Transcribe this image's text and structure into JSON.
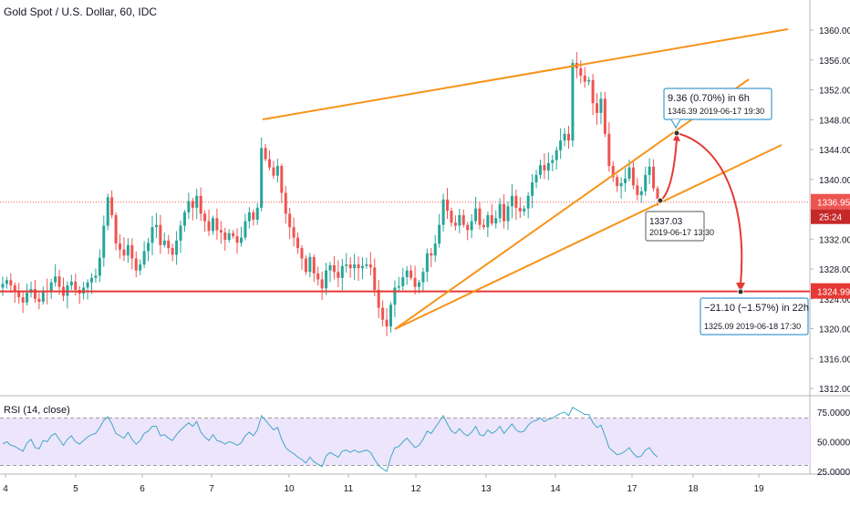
{
  "chart": {
    "title": "Gold Spot / U.S. Dollar, 60, IDC",
    "rsi_label": "RSI (14, close)"
  },
  "chart_data": {
    "type": "candlestick",
    "title": "Gold Spot / U.S. Dollar, 60, IDC",
    "price_axis": {
      "ylim": [
        1311,
        1362
      ],
      "ticks": [
        "1312.00",
        "1316.00",
        "1320.00",
        "1324.00",
        "1328.00",
        "1332.00",
        "1336.00",
        "1340.00",
        "1344.00",
        "1348.00",
        "1352.00",
        "1356.00",
        "1360.00"
      ]
    },
    "time_axis": {
      "ticks": [
        "4",
        "5",
        "6",
        "7",
        "10",
        "11",
        "12",
        "13",
        "14",
        "17",
        "18",
        "19"
      ]
    },
    "current_price": {
      "value": "1336.95",
      "countdown": "25:24"
    },
    "target_line": {
      "value": "1324.99"
    },
    "series": [
      {
        "name": "price",
        "ohlc_hourly_closes": [
          1326,
          1326.5,
          1325.8,
          1325,
          1324.2,
          1323.5,
          1324.8,
          1325.3,
          1324,
          1323.6,
          1325.1,
          1324.9,
          1326.2,
          1327,
          1325.6,
          1324.4,
          1325.8,
          1326.3,
          1325.2,
          1324.7,
          1325.5,
          1326.2,
          1326.8,
          1327.1,
          1329.5,
          1333.8,
          1337.6,
          1335.2,
          1331.4,
          1330.6,
          1329.8,
          1331.2,
          1329.4,
          1327.8,
          1328.6,
          1330.4,
          1331.5,
          1333.6,
          1333.9,
          1331.2,
          1331.8,
          1330.8,
          1329.9,
          1331.8,
          1333.8,
          1335.6,
          1337.1,
          1336.2,
          1337.8,
          1335.4,
          1334.4,
          1333.1,
          1334.8,
          1333.2,
          1332.9,
          1331.9,
          1332.8,
          1332.4,
          1331.5,
          1332.2,
          1334.4,
          1335.6,
          1334.6,
          1336.2,
          1344.2,
          1342.7,
          1341.6,
          1340.5,
          1341.8,
          1338.2,
          1335.4,
          1333.6,
          1332.2,
          1330.8,
          1329.4,
          1327.6,
          1329.6,
          1327.4,
          1326.6,
          1325.4,
          1327.8,
          1328.5,
          1327.6,
          1326.8,
          1328.4,
          1328.6,
          1328.1,
          1328.6,
          1328.1,
          1328.4,
          1328.6,
          1328.2,
          1325.2,
          1322.8,
          1321.2,
          1320.3,
          1323.2,
          1325.5,
          1325.7,
          1326.9,
          1327.8,
          1326.8,
          1325.6,
          1326.2,
          1327.6,
          1330.1,
          1329.8,
          1331.4,
          1333.9,
          1337.3,
          1335.8,
          1334.2,
          1333.8,
          1335.2,
          1333.9,
          1333.2,
          1334.4,
          1336.1,
          1333.9,
          1333.6,
          1335.2,
          1334.1,
          1334.8,
          1336.7,
          1334.4,
          1336.4,
          1337.8,
          1336.2,
          1335.7,
          1336.1,
          1337.8,
          1339.6,
          1340.6,
          1341.9,
          1341.2,
          1342.2,
          1342.6,
          1343.9,
          1345.2,
          1346.1,
          1345.2,
          1355.6,
          1354.9,
          1353.9,
          1353.1,
          1353.3,
          1350.2,
          1348.9,
          1350.8,
          1346.1,
          1341.8,
          1340.3,
          1339.1,
          1339.5,
          1340.1,
          1341.6,
          1339.2,
          1337.9,
          1338.4,
          1340.6,
          1341.7,
          1338.8,
          1337.4
        ]
      }
    ],
    "rsi": {
      "ylim": [
        22,
        80
      ],
      "ticks": [
        "75.0000",
        "50.0000",
        "25.0000"
      ],
      "band": [
        30,
        70
      ],
      "values": [
        48,
        50,
        47,
        46,
        44,
        42,
        49,
        52,
        45,
        44,
        51,
        50,
        55,
        57,
        52,
        47,
        52,
        55,
        50,
        48,
        51,
        54,
        56,
        57,
        62,
        68,
        71,
        65,
        57,
        55,
        53,
        58,
        52,
        48,
        51,
        57,
        59,
        63,
        63,
        55,
        56,
        53,
        51,
        56,
        60,
        63,
        66,
        63,
        67,
        58,
        54,
        51,
        56,
        51,
        50,
        48,
        50,
        49,
        47,
        49,
        55,
        58,
        55,
        60,
        72,
        68,
        64,
        60,
        62,
        52,
        45,
        42,
        40,
        37,
        35,
        32,
        37,
        33,
        31,
        29,
        38,
        41,
        39,
        37,
        42,
        43,
        41,
        43,
        41,
        42,
        43,
        41,
        35,
        30,
        27,
        25,
        37,
        45,
        46,
        50,
        53,
        49,
        45,
        47,
        52,
        59,
        57,
        62,
        67,
        72,
        65,
        59,
        57,
        61,
        57,
        55,
        58,
        63,
        56,
        55,
        60,
        57,
        59,
        63,
        57,
        61,
        65,
        60,
        58,
        59,
        64,
        67,
        68,
        70,
        67,
        69,
        70,
        72,
        74,
        75,
        72,
        79,
        77,
        75,
        73,
        73,
        66,
        62,
        64,
        55,
        45,
        42,
        39,
        40,
        42,
        45,
        40,
        37,
        38,
        43,
        45,
        40,
        37
      ]
    },
    "trendlines": [
      {
        "name": "upper-channel"
      },
      {
        "name": "wedge-upper"
      },
      {
        "name": "wedge-lower"
      },
      {
        "name": "support-line"
      }
    ],
    "annotations": [
      {
        "label": "9.36 (0.70%) in 6h",
        "sub": "1346.39   2019-06-17  19:30"
      },
      {
        "label": "1337.03",
        "sub": "2019-06-17 13:30"
      },
      {
        "label": "−21.10 (−1.57%) in 22h",
        "sub": "1325.09      2019-06-18  17:30"
      }
    ]
  },
  "colors": {
    "up": "#26a69a",
    "down": "#ef5350",
    "trend": "#f7931a",
    "target": "#e53935",
    "arrow": "#e53935",
    "rsi_line": "#3fa7c7",
    "rsi_band": "#ede5fb",
    "callout_border": "#3f9bd0",
    "current_price_bg": "#ef5350",
    "grid": "#f0f3fa",
    "axis_text": "#131722"
  }
}
